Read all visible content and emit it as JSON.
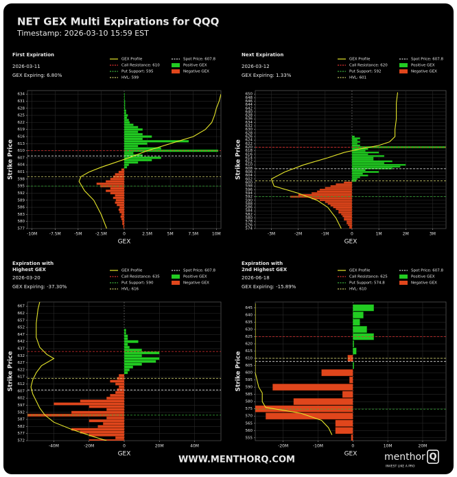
{
  "header": {
    "title": "NET GEX Multi Expirations for QQQ",
    "timestamp": "Timestamp: 2026-03-10 15:59 EST"
  },
  "footer": {
    "url": "WWW.MENTHORQ.COM",
    "logo": "menthor",
    "logo_mark": "Q",
    "tagline": "INVEST LIKE A PRO"
  },
  "chart_data": [
    {
      "type": "bar",
      "title": [
        "First Expiration"
      ],
      "date": "2026-03-11",
      "expiring": "GEX Expiring: 6.80%",
      "xlabel": "GEX",
      "ylabel": "Strike Price",
      "grid": true,
      "positive_color": "#22cc22",
      "negative_color": "#e0461c",
      "legend_positive": "Positive GEX",
      "legend_negative": "Negative GEX",
      "strikes": [
        577,
        578,
        579,
        580,
        581,
        582,
        583,
        584,
        585,
        586,
        587,
        588,
        589,
        590,
        591,
        592,
        593,
        594,
        595,
        596,
        597,
        598,
        599,
        600,
        601,
        602,
        603,
        604,
        605,
        606,
        607,
        608,
        609,
        610,
        611,
        612,
        613,
        614,
        615,
        616,
        617,
        618,
        619,
        620,
        621,
        622,
        623,
        624,
        625,
        626,
        627,
        628,
        629,
        630,
        631,
        632,
        633,
        634
      ],
      "values": [
        -100000,
        -100000,
        -200000,
        -200000,
        -300000,
        -400000,
        -300000,
        -500000,
        -600000,
        -500000,
        -800000,
        -1000000,
        -900000,
        -1200000,
        -1000000,
        -1500000,
        -2000000,
        -1500000,
        -2600000,
        -3000000,
        -2000000,
        -1500000,
        -1200000,
        -1000000,
        -600000,
        -300000,
        300000,
        500000,
        1500000,
        3000000,
        4000000,
        2000000,
        1000000,
        10200000,
        4000000,
        1500000,
        2500000,
        7000000,
        2000000,
        3000000,
        2000000,
        1500000,
        2000000,
        1500000,
        1000000,
        600000,
        500000,
        300000,
        400000,
        200000,
        200000,
        100000,
        100000,
        100000,
        100000,
        50000,
        50000,
        50000
      ],
      "profile": {
        "name": "GEX Profile",
        "color": "#e8e82a",
        "strikes": [
          577,
          583,
          589,
          593,
          597,
          599,
          601,
          603,
          605,
          607,
          610,
          613,
          616,
          619,
          622,
          625,
          628,
          631,
          634
        ],
        "values": [
          -1900000,
          -2500000,
          -3300000,
          -4300000,
          -4900000,
          -4700000,
          -3800000,
          -2500000,
          -1000000,
          500000,
          2500000,
          5000000,
          7500000,
          8800000,
          9500000,
          9800000,
          10000000,
          10300000,
          10500000
        ]
      },
      "levels": [
        {
          "label": "Call Resistance: 610",
          "value": 610,
          "color": "#e03030"
        },
        {
          "label": "Put Support: 595",
          "value": 595,
          "color": "#3cb43c"
        },
        {
          "label": "HVL: 599",
          "value": 599,
          "color": "#c8c86a"
        },
        {
          "label": "Spot Price: 607.8",
          "value": 607.8,
          "color": "#dddddd"
        }
      ],
      "xlim": [
        -10500000,
        10500000
      ],
      "xticks": [
        {
          "value": -10000000,
          "label": "-10M"
        },
        {
          "value": -7500000,
          "label": "-7.5M"
        },
        {
          "value": -5000000,
          "label": "-5M"
        },
        {
          "value": -2500000,
          "label": "-2.5M"
        },
        0,
        {
          "value": 2500000,
          "label": "2.5M"
        },
        {
          "value": 5000000,
          "label": "5M"
        },
        {
          "value": 7500000,
          "label": "7.5M"
        },
        {
          "value": 10000000,
          "label": "10M"
        }
      ],
      "ylim": [
        577,
        635.5
      ],
      "yticks": [
        577,
        580,
        583,
        586,
        589,
        592,
        595,
        598,
        601,
        604,
        607,
        610,
        613,
        616,
        619,
        622,
        625,
        628,
        631,
        634
      ]
    },
    {
      "type": "bar",
      "title": [
        "Next Expiration"
      ],
      "date": "2026-03-12",
      "expiring": "GEX Expiring: 1.33%",
      "xlabel": "GEX",
      "ylabel": "Strike Price",
      "grid": true,
      "positive_color": "#22cc22",
      "negative_color": "#e0461c",
      "legend_positive": "Positive GEX",
      "legend_negative": "Negative GEX",
      "strikes": [
        574,
        575,
        576,
        577,
        578,
        579,
        580,
        581,
        582,
        583,
        584,
        585,
        586,
        587,
        588,
        589,
        590,
        591,
        592,
        593,
        594,
        595,
        596,
        597,
        598,
        599,
        600,
        601,
        602,
        603,
        604,
        605,
        606,
        607,
        608,
        609,
        610,
        611,
        612,
        613,
        614,
        615,
        616,
        617,
        618,
        619,
        620,
        621,
        622,
        623,
        624,
        625,
        626
      ],
      "values": [
        -100000,
        -100000,
        -150000,
        -200000,
        -200000,
        -300000,
        -300000,
        -350000,
        -400000,
        -500000,
        -500000,
        -600000,
        -700000,
        -800000,
        -900000,
        -1000000,
        -1200000,
        -1500000,
        -2300000,
        -2000000,
        -1500000,
        -1300000,
        -1200000,
        -1000000,
        -800000,
        -600000,
        -300000,
        150000,
        200000,
        300000,
        600000,
        400000,
        1000000,
        500000,
        1500000,
        1800000,
        2000000,
        1200000,
        1500000,
        800000,
        800000,
        1200000,
        600000,
        1000000,
        500000,
        600000,
        3500000,
        300000,
        200000,
        300000,
        200000,
        300000,
        100000
      ],
      "profile": {
        "name": "GEX Profile",
        "color": "#e8e82a",
        "strikes": [
          574,
          580,
          586,
          590,
          594,
          598,
          602,
          606,
          610,
          614,
          617,
          619,
          621,
          623,
          626,
          630,
          636,
          645,
          651
        ],
        "values": [
          -400000,
          -600000,
          -900000,
          -1300000,
          -2000000,
          -2900000,
          -3000000,
          -2500000,
          -1800000,
          -900000,
          -300000,
          300000,
          1000000,
          1400000,
          1600000,
          1600000,
          1650000,
          1650000,
          1700000
        ]
      },
      "levels": [
        {
          "label": "Call Resistance: 620",
          "value": 620,
          "color": "#e03030"
        },
        {
          "label": "Put Support: 592",
          "value": 592,
          "color": "#3cb43c"
        },
        {
          "label": "HVL: 601",
          "value": 601,
          "color": "#c8c86a"
        },
        {
          "label": "Spot Price: 607.8",
          "value": 607.8,
          "color": "#dddddd"
        }
      ],
      "xlim": [
        -3600000,
        3500000
      ],
      "xticks": [
        {
          "value": -3000000,
          "label": "-3M"
        },
        {
          "value": -2000000,
          "label": "-2M"
        },
        {
          "value": -1000000,
          "label": "-1M"
        },
        0,
        {
          "value": 1000000,
          "label": "1M"
        },
        {
          "value": 2000000,
          "label": "2M"
        },
        {
          "value": 3000000,
          "label": "3M"
        }
      ],
      "ylim": [
        574,
        652
      ],
      "yticks": [
        574,
        576,
        578,
        580,
        582,
        584,
        586,
        588,
        590,
        592,
        594,
        596,
        598,
        600,
        602,
        604,
        606,
        608,
        610,
        612,
        614,
        616,
        618,
        620,
        622,
        624,
        626,
        628,
        630,
        632,
        634,
        636,
        638,
        640,
        642,
        644,
        646,
        648,
        650
      ]
    },
    {
      "type": "bar",
      "title": [
        "Expiration with",
        "Highest GEX"
      ],
      "date": "2026-03-20",
      "expiring": "GEX Expiring: -37.30%",
      "xlabel": "GEX",
      "ylabel": "Strike Price",
      "grid": true,
      "positive_color": "#22cc22",
      "negative_color": "#e0461c",
      "legend_positive": "Positive GEX",
      "legend_negative": "Negative GEX",
      "strikes": [
        572,
        574,
        576,
        578,
        580,
        582,
        584,
        586,
        588,
        590,
        592,
        594,
        596,
        598,
        600,
        602,
        604,
        606,
        608,
        610,
        612,
        614,
        616,
        618,
        620,
        622,
        624,
        626,
        628,
        630,
        632,
        634,
        636,
        638,
        640,
        642,
        644,
        646,
        648,
        650
      ],
      "values": [
        -20000000,
        -5000000,
        -20000000,
        -25000000,
        -30000000,
        -15000000,
        -12000000,
        -20000000,
        -10000000,
        -55000000,
        -30000000,
        -10000000,
        -20000000,
        -40000000,
        -25000000,
        -10000000,
        -8000000,
        -5000000,
        -4000000,
        -3000000,
        -5000000,
        -8000000,
        -4000000,
        -3000000,
        2000000,
        3000000,
        5000000,
        10000000,
        18000000,
        20000000,
        10000000,
        20000000,
        10000000,
        3000000,
        2000000,
        8000000,
        2000000,
        2000000,
        1000000,
        1000000
      ],
      "profile": {
        "name": "GEX Profile",
        "color": "#e8e82a",
        "strikes": [
          572,
          575,
          580,
          585,
          590,
          595,
          600,
          605,
          610,
          615,
          620,
          625,
          630,
          633,
          638,
          645,
          655,
          665,
          670
        ],
        "values": [
          -10000000,
          -18000000,
          -30000000,
          -40000000,
          -45000000,
          -48000000,
          -50000000,
          -52000000,
          -53000000,
          -52000000,
          -50000000,
          -47000000,
          -40000000,
          -44000000,
          -48000000,
          -50000000,
          -50000000,
          -49000000,
          -48000000
        ]
      },
      "levels": [
        {
          "label": "Call Resistance: 635",
          "value": 635,
          "color": "#e03030"
        },
        {
          "label": "Put Support: 590",
          "value": 590,
          "color": "#3cb43c"
        },
        {
          "label": "HVL: 616",
          "value": 616,
          "color": "#c8c86a"
        },
        {
          "label": "Spot Price: 607.8",
          "value": 607.8,
          "color": "#dddddd"
        }
      ],
      "xlim": [
        -55000000,
        55000000
      ],
      "xticks": [
        {
          "value": -40000000,
          "label": "-40M"
        },
        {
          "value": -20000000,
          "label": "-20M"
        },
        0,
        {
          "value": 20000000,
          "label": "20M"
        },
        {
          "value": 40000000,
          "label": "40M"
        }
      ],
      "ylim": [
        572,
        670
      ],
      "yticks": [
        572,
        577,
        582,
        587,
        592,
        597,
        602,
        607,
        612,
        617,
        622,
        627,
        632,
        637,
        642,
        647,
        652,
        657,
        662,
        667
      ]
    },
    {
      "type": "bar",
      "title": [
        "Expiration with",
        "2nd Highest GEX"
      ],
      "date": "2026-06-18",
      "expiring": "GEX Expiring: -15.89%",
      "xlabel": "GEX",
      "ylabel": "Strike Price",
      "grid": true,
      "positive_color": "#22cc22",
      "negative_color": "#e0461c",
      "legend_positive": "Positive GEX",
      "legend_negative": "Negative GEX",
      "strikes": [
        555,
        560,
        565,
        570,
        575,
        580,
        585,
        590,
        595,
        600,
        605,
        610,
        615,
        620,
        625,
        630,
        635,
        640,
        645
      ],
      "values": [
        -500000,
        -5000000,
        -5000000,
        -25000000,
        -30000000,
        -17000000,
        -3000000,
        -23000000,
        -1000000,
        -9000000,
        300000,
        -1500000,
        1000000,
        300000,
        6000000,
        4000000,
        2000000,
        3000000,
        6000000
      ],
      "profile": {
        "name": "GEX Profile",
        "color": "#e8e82a",
        "strikes": [
          557,
          562,
          567,
          572,
          576,
          580,
          586,
          590,
          600,
          610,
          620,
          630,
          640,
          648
        ],
        "values": [
          -6000000,
          -7000000,
          -9000000,
          -15000000,
          -25000000,
          -26000000,
          -26000000,
          -27000000,
          -28000000,
          -28000000,
          -28000000,
          -28000000,
          -28000000,
          -28000000
        ]
      },
      "levels": [
        {
          "label": "Call Resistance: 625",
          "value": 625,
          "color": "#e03030"
        },
        {
          "label": "Put Support: 574.8",
          "value": 574.8,
          "color": "#3cb43c"
        },
        {
          "label": "HVL: 610",
          "value": 610,
          "color": "#c8c86a"
        },
        {
          "label": "Spot Price: 607.8",
          "value": 607.8,
          "color": "#dddddd"
        }
      ],
      "xlim": [
        -28000000,
        26700000
      ],
      "xticks": [
        {
          "value": -20000000,
          "label": "-20M"
        },
        {
          "value": -10000000,
          "label": "-10M"
        },
        0,
        {
          "value": 10000000,
          "label": "10M"
        },
        {
          "value": 20000000,
          "label": "20M"
        }
      ],
      "ylim": [
        553,
        649
      ],
      "yticks": [
        555,
        560,
        565,
        570,
        575,
        580,
        585,
        590,
        595,
        600,
        605,
        610,
        615,
        620,
        625,
        630,
        635,
        640,
        645
      ]
    }
  ]
}
